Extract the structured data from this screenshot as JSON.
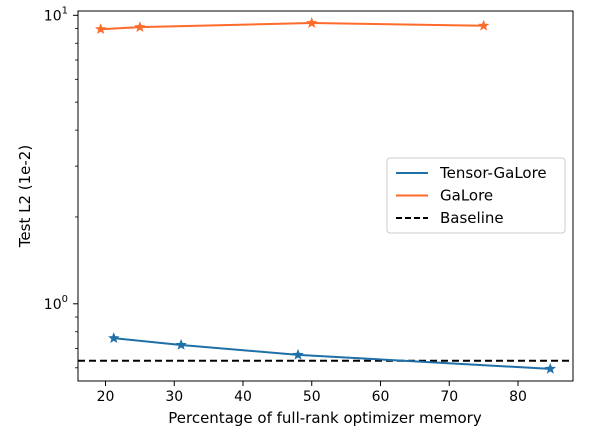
{
  "chart_data": {
    "type": "line",
    "xlabel": "Percentage of full-rank optimizer memory",
    "ylabel": "Test L2 (1e-2)",
    "xlim": [
      16,
      88
    ],
    "ylim": [
      0.54,
      10.35
    ],
    "yscale": "log",
    "x_ticks": [
      20,
      30,
      40,
      50,
      60,
      70,
      80
    ],
    "y_ticks": [
      {
        "value": 1,
        "base": "10",
        "exp": "0"
      },
      {
        "value": 10,
        "base": "10",
        "exp": "1"
      }
    ],
    "grid": false,
    "legend_position": "center-right",
    "series": [
      {
        "name": "Tensor-GaLore",
        "color": "#1f6fa8",
        "marker": "star",
        "x": [
          21.2,
          31.0,
          48.0,
          84.7
        ],
        "y": [
          0.76,
          0.72,
          0.665,
          0.595
        ]
      },
      {
        "name": "GaLore",
        "color": "#ff6b2b",
        "marker": "star",
        "x": [
          19.3,
          25.0,
          50.0,
          75.0
        ],
        "y": [
          8.95,
          9.1,
          9.4,
          9.2
        ]
      }
    ],
    "baseline": {
      "name": "Baseline",
      "y": 0.635,
      "color": "#000000",
      "style": "dashed"
    }
  }
}
